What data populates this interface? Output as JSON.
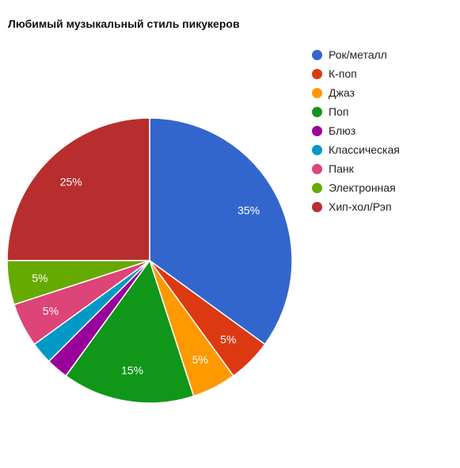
{
  "chart_data": {
    "type": "pie",
    "title": "Любимый музыкальный стиль пикукеров",
    "legend_position": "right",
    "slices": [
      {
        "label": "Рок/металл",
        "value": 35,
        "data_label": "35%",
        "color": "#3366cc"
      },
      {
        "label": "К-поп",
        "value": 5,
        "data_label": "5%",
        "color": "#dc3912"
      },
      {
        "label": "Джаз",
        "value": 5,
        "data_label": "5%",
        "color": "#ff9900"
      },
      {
        "label": "Поп",
        "value": 15,
        "data_label": "15%",
        "color": "#109618"
      },
      {
        "label": "Блюз",
        "value": 2.5,
        "data_label": "",
        "color": "#990099"
      },
      {
        "label": "Классическая",
        "value": 2.5,
        "data_label": "",
        "color": "#0099c6"
      },
      {
        "label": "Панк",
        "value": 5,
        "data_label": "5%",
        "color": "#dd4477"
      },
      {
        "label": "Электронная",
        "value": 5,
        "data_label": "5%",
        "color": "#66aa00"
      },
      {
        "label": "Хип-хол/Рэп",
        "value": 25,
        "data_label": "25%",
        "color": "#b82e2e"
      }
    ]
  }
}
